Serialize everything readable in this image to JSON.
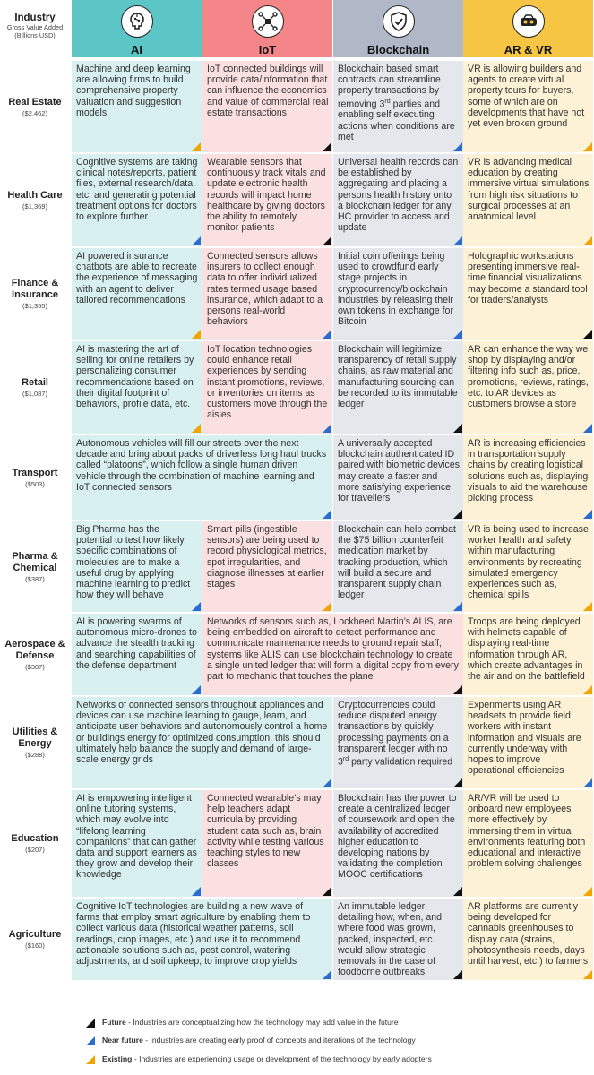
{
  "header_label": {
    "title": "Industry",
    "subtitle_line1": "Gross Value Added",
    "subtitle_line2": "(Billions USD)"
  },
  "columns": [
    {
      "key": "ai",
      "label": "AI",
      "icon": "brain-circuit-icon",
      "header_color": "#5cc6c6",
      "cell_color": "#d9f0f0"
    },
    {
      "key": "iot",
      "label": "IoT",
      "icon": "iot-network-icon",
      "header_color": "#f4868a",
      "cell_color": "#fbe0e2"
    },
    {
      "key": "bc",
      "label": "Blockchain",
      "icon": "shield-chain-icon",
      "header_color": "#b0b8c8",
      "cell_color": "#e4e7ec"
    },
    {
      "key": "ar",
      "label": "AR & VR",
      "icon": "vr-headset-icon",
      "header_color": "#f7c544",
      "cell_color": "#fdf2d6"
    }
  ],
  "rows": [
    {
      "name": "Real Estate",
      "value": "($2,462)"
    },
    {
      "name": "Health Care",
      "value": "($1,369)"
    },
    {
      "name": "Finance & Insurance",
      "value": "($1,355)"
    },
    {
      "name": "Retail",
      "value": "($1,087)"
    },
    {
      "name": "Transport",
      "value": "($503)"
    },
    {
      "name": "Pharma & Chemical",
      "value": "($387)"
    },
    {
      "name": "Aerospace & Defense",
      "value": "($307)"
    },
    {
      "name": "Utilities & Energy",
      "value": "($288)"
    },
    {
      "name": "Education",
      "value": "($207)"
    },
    {
      "name": "Agriculture",
      "value": "($160)"
    }
  ],
  "cells": [
    {
      "row": 0,
      "col": 0,
      "span": 1,
      "stage": "existing",
      "text": "Machine and deep learning are allowing firms to build comprehensive property valuation and suggestion models"
    },
    {
      "row": 0,
      "col": 1,
      "span": 1,
      "stage": "future",
      "text": "IoT connected buildings will provide data/information that can influence the economics and value of commercial real estate transactions"
    },
    {
      "row": 0,
      "col": 2,
      "span": 1,
      "stage": "near",
      "text": "Blockchain based smart contracts can streamline property transactions by removing 3rd parties and enabling self executing actions when conditions are met"
    },
    {
      "row": 0,
      "col": 3,
      "span": 1,
      "stage": "existing",
      "text": "VR is allowing builders and agents to create virtual property tours for buyers, some of which are on developments that have not yet even broken ground"
    },
    {
      "row": 1,
      "col": 0,
      "span": 1,
      "stage": "near",
      "text": "Cognitive systems are taking clinical notes/reports, patient files, external research/data, etc. and generating potential treatment options for doctors to explore further"
    },
    {
      "row": 1,
      "col": 1,
      "span": 1,
      "stage": "future",
      "text": "Wearable sensors that continuously track vitals and update electronic health records will impact home healthcare by giving doctors the ability to remotely monitor patients"
    },
    {
      "row": 1,
      "col": 2,
      "span": 1,
      "stage": "near",
      "text": "Universal health records can be established by aggregating and placing a persons health history onto a blockchain ledger for any HC provider to access and update"
    },
    {
      "row": 1,
      "col": 3,
      "span": 1,
      "stage": "existing",
      "text": "VR is advancing medical education by creating immersive virtual simulations from high risk situations to surgical processes at an anatomical level"
    },
    {
      "row": 2,
      "col": 0,
      "span": 1,
      "stage": "existing",
      "text": "AI powered insurance chatbots are able to recreate the experience of messaging with an agent to deliver tailored recommendations"
    },
    {
      "row": 2,
      "col": 1,
      "span": 1,
      "stage": "near",
      "text": "Connected sensors allows insurers to collect enough data to offer individualized rates termed usage based insurance, which adapt to a persons real-world behaviors"
    },
    {
      "row": 2,
      "col": 2,
      "span": 1,
      "stage": "near",
      "text": "Initial coin offerings being used to crowdfund early stage projects in cryptocurrency/blockchain industries by releasing their own tokens in exchange for Bitcoin"
    },
    {
      "row": 2,
      "col": 3,
      "span": 1,
      "stage": "future",
      "text": "Holographic workstations presenting immersive real-time financial visualizations may become a standard tool for traders/analysts"
    },
    {
      "row": 3,
      "col": 0,
      "span": 1,
      "stage": "existing",
      "text": "AI is mastering the art of selling for online retailers by personalizing consumer recommendations based on their digital footprint of behaviors, profile data, etc."
    },
    {
      "row": 3,
      "col": 1,
      "span": 1,
      "stage": "near",
      "text": "IoT location technologies could enhance retail experiences by sending instant promotions, reviews, or inventories on items as customers move through the aisles"
    },
    {
      "row": 3,
      "col": 2,
      "span": 1,
      "stage": "future",
      "text": "Blockchain will legitimize transparency of retail supply chains, as raw material and manufacturing sourcing can be recorded to its immutable ledger"
    },
    {
      "row": 3,
      "col": 3,
      "span": 1,
      "stage": "near",
      "text": "AR can enhance the way we shop by displaying and/or filtering info such as, price, promotions, reviews, ratings, etc. to AR devices as customers browse a store"
    },
    {
      "row": 4,
      "col": 0,
      "span": 2,
      "stage": "near",
      "text": "Autonomous vehicles will fill our streets over the next decade and bring about packs of driverless long haul trucks called “platoons”, which follow a single human driven vehicle through the combination of machine learning and IoT connected sensors"
    },
    {
      "row": 4,
      "col": 2,
      "span": 1,
      "stage": "future",
      "text": "A universally accepted blockchain authenticated ID paired with biometric devices may create a faster and more satisfying experience for travellers"
    },
    {
      "row": 4,
      "col": 3,
      "span": 1,
      "stage": "near",
      "text": "AR is increasing efficiencies in transportation supply chains by creating logistical solutions such as, displaying visuals to aid the warehouse picking process"
    },
    {
      "row": 5,
      "col": 0,
      "span": 1,
      "stage": "near",
      "text": "Big Pharma has the potential to test how likely specific combinations of molecules are to make a useful drug by applying machine learning to predict how they will behave"
    },
    {
      "row": 5,
      "col": 1,
      "span": 1,
      "stage": "existing",
      "text": "Smart pills (ingestible sensors) are being used to record physiological metrics, spot irregularities, and diagnose illnesses at earlier stages"
    },
    {
      "row": 5,
      "col": 2,
      "span": 1,
      "stage": "near",
      "text": "Blockchain can help combat the $75 billion counterfeit medication market by tracking production, which will build a secure and transparent supply chain ledger"
    },
    {
      "row": 5,
      "col": 3,
      "span": 1,
      "stage": "existing",
      "text": "VR is being used to increase worker health and safety within manufacturing environments by recreating simulated emergency experiences such as, chemical spills"
    },
    {
      "row": 6,
      "col": 0,
      "span": 1,
      "stage": "near",
      "text": "AI is powering swarms of autonomous micro-drones to advance the stealth tracking and searching capabilities of the defense department"
    },
    {
      "row": 6,
      "col": 1,
      "span": 2,
      "stage": "future",
      "text": "Networks of sensors such as, Lockheed Martin’s ALIS, are being embedded on aircraft to detect performance and communicate maintenance needs to ground repair staff; systems like ALIS can use blockchain technology to create a single united ledger that will form a digital copy from every part to mechanic that touches the plane"
    },
    {
      "row": 6,
      "col": 3,
      "span": 1,
      "stage": "existing",
      "text": "Troops are being deployed with helmets capable of displaying real-time information through AR, which create advantages in the air and on the battlefield"
    },
    {
      "row": 7,
      "col": 0,
      "span": 2,
      "stage": "near",
      "text": "Networks of connected sensors throughout appliances and devices can use machine learning to gauge, learn, and anticipate user behaviors and autonomously control a home or buildings energy for optimized consumption, this should ultimately help balance the supply and demand of large-scale energy grids"
    },
    {
      "row": 7,
      "col": 2,
      "span": 1,
      "stage": "future",
      "text": "Cryptocurrencies could reduce disputed energy transactions by quickly processing payments on a transparent ledger with no 3rd party validation required"
    },
    {
      "row": 7,
      "col": 3,
      "span": 1,
      "stage": "near",
      "text": "Experiments using AR headsets to provide field workers with instant information and visuals are currently underway with hopes to improve operational efficiencies"
    },
    {
      "row": 8,
      "col": 0,
      "span": 1,
      "stage": "near",
      "text": "AI is empowering intelligent online tutoring systems, which may evolve into “lifelong learning companions” that can gather data and support learners as they grow and develop their knowledge"
    },
    {
      "row": 8,
      "col": 1,
      "span": 1,
      "stage": "future",
      "text": "Connected wearable’s may help teachers adapt curricula by providing student data such as, brain activity while testing various teaching styles to new classes"
    },
    {
      "row": 8,
      "col": 2,
      "span": 1,
      "stage": "future",
      "text": "Blockchain has the power to create a centralized ledger of coursework and open the availability of accredited higher education to developing nations by validating the completion MOOC certifications"
    },
    {
      "row": 8,
      "col": 3,
      "span": 1,
      "stage": "existing",
      "text": "AR/VR will be used to onboard new employees more effectively by immersing them in virtual environments featuring both educational and interactive problem solving challenges"
    },
    {
      "row": 9,
      "col": 0,
      "span": 2,
      "stage": "near",
      "text": "Cognitive IoT technologies are building a new wave of farms that employ smart agriculture by enabling them to collect various data (historical weather patterns, soil readings, crop images, etc.) and use it to recommend actionable solutions such as, pest control, watering adjustments, and soil upkeep, to improve crop yields"
    },
    {
      "row": 9,
      "col": 2,
      "span": 1,
      "stage": "future",
      "text": "An immutable ledger detailing how, when, and where food was grown, packed, inspected, etc. would allow strategic removals in the case of foodborne outbreaks"
    },
    {
      "row": 9,
      "col": 3,
      "span": 1,
      "stage": "existing",
      "text": "AR platforms are currently being developed for cannabis greenhouses to display data (strains, photosynthesis needs, days until harvest, etc.) to farmers"
    }
  ],
  "legend": [
    {
      "key": "future",
      "label": "Future",
      "desc": " - Industries are conceptualizing how the technology may add value in the future"
    },
    {
      "key": "near",
      "label": "Near future",
      "desc": " - Industries are creating early proof of concepts and iterations of the technology"
    },
    {
      "key": "existing",
      "label": "Existing",
      "desc": " - Industries are experiencing usage or development of the technology by early adopters"
    }
  ],
  "stage_colors": {
    "future": "#111111",
    "near": "#2b6ccf",
    "existing": "#f0a500"
  }
}
